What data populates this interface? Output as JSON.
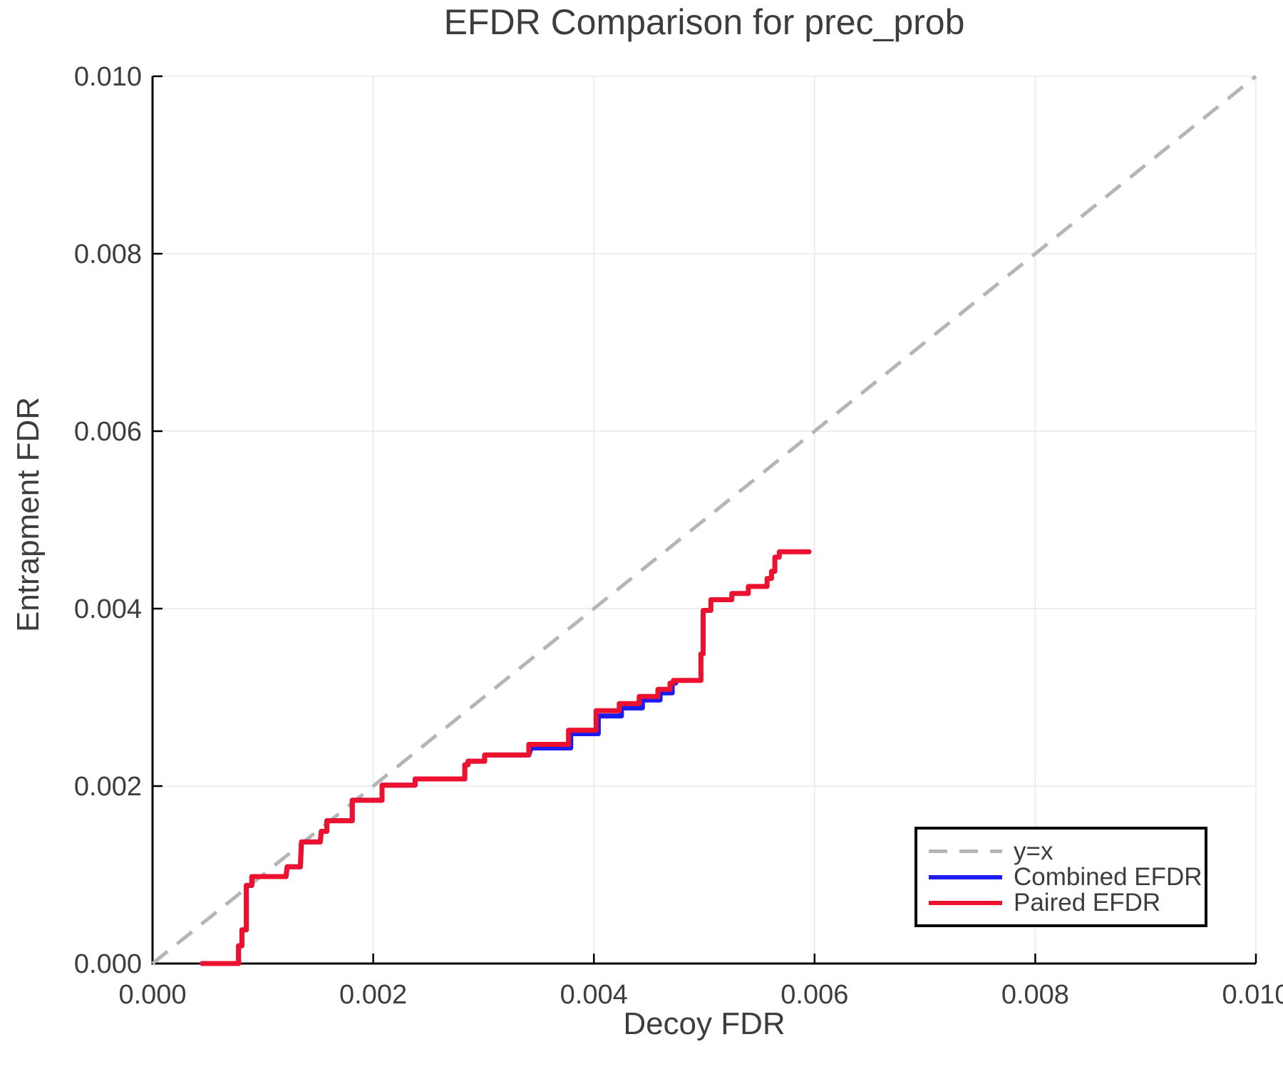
{
  "figure": {
    "title": "EFDR Comparison for prec_prob",
    "xlabel": "Decoy FDR",
    "ylabel": "Entrapment FDR"
  },
  "legend": {
    "items": [
      {
        "label": "y=x",
        "style": "dashed",
        "color": "#b5b5b5"
      },
      {
        "label": "Combined EFDR",
        "style": "solid",
        "color": "#1c1cf0"
      },
      {
        "label": "Paired EFDR",
        "style": "solid",
        "color": "#ed1130"
      }
    ]
  },
  "chart_data": {
    "type": "line",
    "title": "EFDR Comparison for prec_prob",
    "xlabel": "Decoy FDR",
    "ylabel": "Entrapment FDR",
    "xlim": [
      0.0,
      0.01
    ],
    "ylim": [
      0.0,
      0.01
    ],
    "x_ticks": [
      0.0,
      0.002,
      0.004,
      0.006,
      0.008,
      0.01
    ],
    "y_ticks": [
      0.0,
      0.002,
      0.004,
      0.006,
      0.008,
      0.01
    ],
    "tick_decimals": 3,
    "grid": true,
    "legend_position": "lower right",
    "colors": {
      "grid": "#e8e8e8",
      "axis": "#000000",
      "text": "#3d3d3d",
      "identity": "#b5b5b5",
      "combined": "#1c1cf0",
      "paired": "#ed1130"
    },
    "series": [
      {
        "name": "y=x",
        "style": "dashed",
        "color": "#b5b5b5",
        "points": [
          [
            0.0,
            0.0
          ],
          [
            0.01,
            0.01
          ]
        ]
      },
      {
        "name": "Combined EFDR",
        "style": "solid",
        "color": "#1c1cf0",
        "points": [
          [
            0.00045,
            0.0
          ],
          [
            0.00078,
            0.0
          ],
          [
            0.00078,
            0.0002
          ],
          [
            0.00081,
            0.0002
          ],
          [
            0.00081,
            0.00038
          ],
          [
            0.00085,
            0.00038
          ],
          [
            0.00085,
            0.00088
          ],
          [
            0.0009,
            0.00088
          ],
          [
            0.0009,
            0.00098
          ],
          [
            0.00121,
            0.00098
          ],
          [
            0.00122,
            0.00109
          ],
          [
            0.00134,
            0.00109
          ],
          [
            0.00135,
            0.00137
          ],
          [
            0.00152,
            0.00137
          ],
          [
            0.00153,
            0.00149
          ],
          [
            0.00158,
            0.00149
          ],
          [
            0.00158,
            0.00161
          ],
          [
            0.00181,
            0.00161
          ],
          [
            0.00181,
            0.00184
          ],
          [
            0.00208,
            0.00184
          ],
          [
            0.00208,
            0.00201
          ],
          [
            0.00238,
            0.00201
          ],
          [
            0.00238,
            0.00208
          ],
          [
            0.00283,
            0.00208
          ],
          [
            0.00283,
            0.00224
          ],
          [
            0.00286,
            0.00224
          ],
          [
            0.00286,
            0.00228
          ],
          [
            0.00301,
            0.00228
          ],
          [
            0.00301,
            0.00235
          ],
          [
            0.00341,
            0.00235
          ],
          [
            0.00343,
            0.00243
          ],
          [
            0.00379,
            0.00243
          ],
          [
            0.00379,
            0.00259
          ],
          [
            0.00404,
            0.00259
          ],
          [
            0.00404,
            0.00279
          ],
          [
            0.00425,
            0.00279
          ],
          [
            0.00425,
            0.00288
          ],
          [
            0.00444,
            0.00288
          ],
          [
            0.00444,
            0.00297
          ],
          [
            0.0046,
            0.00297
          ],
          [
            0.0046,
            0.00305
          ],
          [
            0.00471,
            0.00305
          ],
          [
            0.00471,
            0.00316
          ],
          [
            0.00474,
            0.00316
          ]
        ]
      },
      {
        "name": "Paired EFDR",
        "style": "solid",
        "color": "#ed1130",
        "points": [
          [
            0.00045,
            0.0
          ],
          [
            0.00078,
            0.0
          ],
          [
            0.00078,
            0.0002
          ],
          [
            0.00081,
            0.0002
          ],
          [
            0.00081,
            0.00038
          ],
          [
            0.00085,
            0.00038
          ],
          [
            0.00085,
            0.00088
          ],
          [
            0.0009,
            0.00088
          ],
          [
            0.0009,
            0.00098
          ],
          [
            0.00121,
            0.00098
          ],
          [
            0.00122,
            0.00109
          ],
          [
            0.00134,
            0.00109
          ],
          [
            0.00135,
            0.00137
          ],
          [
            0.00152,
            0.00137
          ],
          [
            0.00153,
            0.00149
          ],
          [
            0.00158,
            0.00149
          ],
          [
            0.00158,
            0.00161
          ],
          [
            0.00181,
            0.00161
          ],
          [
            0.00181,
            0.00184
          ],
          [
            0.00208,
            0.00184
          ],
          [
            0.00208,
            0.00201
          ],
          [
            0.00238,
            0.00201
          ],
          [
            0.00238,
            0.00208
          ],
          [
            0.00283,
            0.00208
          ],
          [
            0.00283,
            0.00224
          ],
          [
            0.00286,
            0.00224
          ],
          [
            0.00286,
            0.00228
          ],
          [
            0.00301,
            0.00228
          ],
          [
            0.00301,
            0.00235
          ],
          [
            0.00341,
            0.00235
          ],
          [
            0.00341,
            0.00247
          ],
          [
            0.00377,
            0.00247
          ],
          [
            0.00377,
            0.00263
          ],
          [
            0.00402,
            0.00263
          ],
          [
            0.00402,
            0.00285
          ],
          [
            0.00423,
            0.00285
          ],
          [
            0.00423,
            0.00293
          ],
          [
            0.00441,
            0.00293
          ],
          [
            0.00441,
            0.00301
          ],
          [
            0.00458,
            0.00301
          ],
          [
            0.00458,
            0.00309
          ],
          [
            0.00469,
            0.00309
          ],
          [
            0.00469,
            0.00316
          ],
          [
            0.00472,
            0.00316
          ],
          [
            0.00472,
            0.00319
          ],
          [
            0.00497,
            0.00319
          ],
          [
            0.00497,
            0.00349
          ],
          [
            0.00499,
            0.00349
          ],
          [
            0.00499,
            0.00398
          ],
          [
            0.00506,
            0.00398
          ],
          [
            0.00506,
            0.0041
          ],
          [
            0.00525,
            0.0041
          ],
          [
            0.00525,
            0.00417
          ],
          [
            0.0054,
            0.00417
          ],
          [
            0.0054,
            0.00425
          ],
          [
            0.00557,
            0.00425
          ],
          [
            0.00557,
            0.00434
          ],
          [
            0.00561,
            0.00434
          ],
          [
            0.00561,
            0.00442
          ],
          [
            0.00564,
            0.00442
          ],
          [
            0.00564,
            0.00458
          ],
          [
            0.00568,
            0.00458
          ],
          [
            0.00568,
            0.00464
          ],
          [
            0.00595,
            0.00464
          ]
        ]
      }
    ]
  }
}
